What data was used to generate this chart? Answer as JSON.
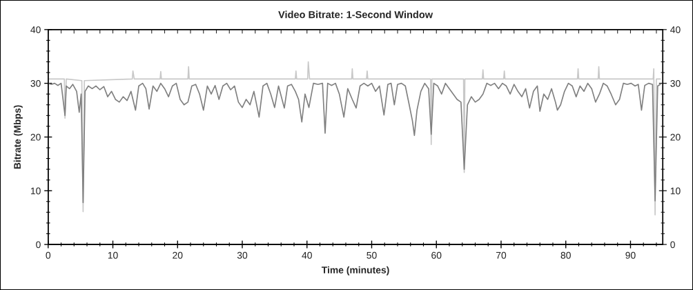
{
  "chart_data": {
    "type": "line",
    "title": "Video Bitrate: 1-Second Window",
    "xlabel": "Time (minutes)",
    "ylabel": "Bitrate (Mbps)",
    "xlim": [
      0,
      95
    ],
    "xticks": [
      0,
      {
        "value": 2,
        "label": null
      },
      {
        "value": 4,
        "label": null
      },
      {
        "value": 6,
        "label": null
      },
      {
        "value": 8,
        "label": null
      },
      10,
      {
        "value": 12,
        "label": null
      },
      {
        "value": 14,
        "label": null
      },
      {
        "value": 16,
        "label": null
      },
      {
        "value": 18,
        "label": null
      },
      20,
      {
        "value": 22,
        "label": null
      },
      {
        "value": 24,
        "label": null
      },
      {
        "value": 26,
        "label": null
      },
      {
        "value": 28,
        "label": null
      },
      30,
      {
        "value": 32,
        "label": null
      },
      {
        "value": 34,
        "label": null
      },
      {
        "value": 36,
        "label": null
      },
      {
        "value": 38,
        "label": null
      },
      40,
      {
        "value": 42,
        "label": null
      },
      {
        "value": 44,
        "label": null
      },
      {
        "value": 46,
        "label": null
      },
      {
        "value": 48,
        "label": null
      },
      50,
      {
        "value": 52,
        "label": null
      },
      {
        "value": 54,
        "label": null
      },
      {
        "value": 56,
        "label": null
      },
      {
        "value": 58,
        "label": null
      },
      60,
      {
        "value": 62,
        "label": null
      },
      {
        "value": 64,
        "label": null
      },
      {
        "value": 66,
        "label": null
      },
      {
        "value": 68,
        "label": null
      },
      70,
      {
        "value": 72,
        "label": null
      },
      {
        "value": 74,
        "label": null
      },
      {
        "value": 76,
        "label": null
      },
      {
        "value": 78,
        "label": null
      },
      80,
      {
        "value": 82,
        "label": null
      },
      {
        "value": 84,
        "label": null
      },
      {
        "value": 86,
        "label": null
      },
      {
        "value": 88,
        "label": null
      },
      90,
      {
        "value": 92,
        "label": null
      },
      {
        "value": 94,
        "label": null
      }
    ],
    "ylim": [
      0,
      40
    ],
    "yticks": [
      0,
      {
        "value": 2,
        "label": null
      },
      {
        "value": 4,
        "label": null
      },
      {
        "value": 6,
        "label": null
      },
      {
        "value": 8,
        "label": null
      },
      10,
      {
        "value": 12,
        "label": null
      },
      {
        "value": 14,
        "label": null
      },
      {
        "value": 16,
        "label": null
      },
      {
        "value": 18,
        "label": null
      },
      20,
      {
        "value": 22,
        "label": null
      },
      {
        "value": 24,
        "label": null
      },
      {
        "value": 26,
        "label": null
      },
      {
        "value": 28,
        "label": null
      },
      30,
      {
        "value": 32,
        "label": null
      },
      {
        "value": 34,
        "label": null
      },
      {
        "value": 36,
        "label": null
      },
      {
        "value": 38,
        "label": null
      },
      40
    ],
    "y2lim": [
      0,
      40
    ],
    "y2ticks": [
      0,
      {
        "value": 2,
        "label": null
      },
      {
        "value": 4,
        "label": null
      },
      {
        "value": 6,
        "label": null
      },
      {
        "value": 8,
        "label": null
      },
      10,
      {
        "value": 12,
        "label": null
      },
      {
        "value": 14,
        "label": null
      },
      {
        "value": 16,
        "label": null
      },
      {
        "value": 18,
        "label": null
      },
      20,
      {
        "value": 22,
        "label": null
      },
      {
        "value": 24,
        "label": null
      },
      {
        "value": 26,
        "label": null
      },
      {
        "value": 28,
        "label": null
      },
      30,
      {
        "value": 32,
        "label": null
      },
      {
        "value": 34,
        "label": null
      },
      {
        "value": 36,
        "label": null
      },
      {
        "value": 38,
        "label": null
      },
      40
    ],
    "series": [
      {
        "color": "#c8c8c8",
        "x": [
          0,
          2.5,
          2.6,
          2.8,
          5.2,
          5.4,
          5.6,
          13,
          13.1,
          13.3,
          17.3,
          17.4,
          17.5,
          21.6,
          21.7,
          21.8,
          38.2,
          38.3,
          38.4,
          40.1,
          40.2,
          40.4,
          46.9,
          47,
          47.1,
          49.2,
          49.3,
          49.4,
          59.1,
          59.2,
          59.3,
          64.2,
          64.3,
          64.4,
          67.1,
          67.2,
          67.3,
          70.4,
          70.5,
          70.6,
          81.8,
          81.9,
          82,
          85,
          85.1,
          85.2,
          93.5,
          93.6,
          93.8,
          94,
          94.6
        ],
        "values": [
          30.8,
          30.8,
          23.5,
          30.8,
          30.5,
          6.1,
          30.5,
          30.8,
          32.3,
          30.8,
          30.8,
          32.2,
          30.8,
          30.8,
          33.1,
          30.8,
          30.8,
          32.3,
          30.8,
          30.8,
          34,
          30.8,
          30.8,
          32.7,
          30.8,
          30.8,
          32.3,
          30.8,
          30.8,
          18.6,
          30.8,
          30.8,
          13.4,
          30.8,
          30.8,
          32.5,
          30.8,
          30.8,
          32.3,
          30.8,
          30.8,
          32.7,
          30.8,
          30.8,
          33.1,
          30.8,
          30.8,
          32.7,
          5.5,
          30.8,
          30.8
        ]
      },
      {
        "color": "#808080",
        "x": [
          0,
          0.5,
          1,
          1.5,
          2,
          2.6,
          2.8,
          3.3,
          3.8,
          4.4,
          4.8,
          5.1,
          5.4,
          5.7,
          6.2,
          6.8,
          7.4,
          8,
          8.6,
          9.2,
          9.8,
          10.4,
          11,
          11.6,
          12.2,
          12.8,
          13.5,
          14,
          14.6,
          15.1,
          15.6,
          16.2,
          16.8,
          17.4,
          18,
          18.6,
          19.2,
          19.8,
          20.4,
          21,
          21.6,
          22.2,
          22.8,
          23.4,
          24,
          24.6,
          25.2,
          25.8,
          26.4,
          27,
          27.6,
          28.2,
          28.8,
          29.4,
          30,
          30.6,
          31.2,
          31.8,
          32.6,
          33.2,
          33.8,
          34.4,
          35,
          35.6,
          36.5,
          37,
          37.6,
          38.2,
          38.7,
          39.2,
          39.7,
          40.3,
          41,
          41.7,
          42.4,
          42.8,
          43.2,
          43.8,
          44.4,
          45,
          45.7,
          46.3,
          47,
          47.6,
          48.2,
          48.8,
          49.4,
          50,
          50.6,
          51.2,
          51.9,
          52.5,
          53,
          53.5,
          54,
          54.6,
          55.2,
          55.8,
          56.3,
          56.6,
          57,
          57.6,
          58.2,
          58.8,
          59.2,
          59.6,
          60.2,
          60.8,
          61.4,
          62,
          62.6,
          63.2,
          63.8,
          64.3,
          64.8,
          65.4,
          66,
          66.6,
          67.2,
          67.8,
          68.4,
          69,
          69.6,
          70.2,
          70.8,
          71.4,
          72,
          72.6,
          73.2,
          73.8,
          74.4,
          75,
          75.6,
          76,
          76.6,
          77.2,
          77.8,
          78.4,
          78.7,
          79.2,
          79.8,
          80.4,
          81,
          81.6,
          82.2,
          82.8,
          83.4,
          84,
          84.6,
          85.2,
          85.8,
          86.4,
          87,
          87.7,
          88.3,
          88.9,
          89.5,
          90.1,
          90.7,
          91.2,
          91.7,
          92.2,
          92.8,
          93.4,
          93.8,
          94.2,
          94.6
        ],
        "values": [
          30,
          29.8,
          30,
          29.6,
          30,
          24,
          29.5,
          29,
          29.8,
          28.5,
          24.6,
          28,
          7.8,
          28.5,
          29.5,
          29,
          29.5,
          28.8,
          29.4,
          27.5,
          28.5,
          27,
          26.5,
          27.5,
          26.8,
          28.5,
          25,
          29.5,
          30,
          29,
          25.2,
          29.5,
          28.5,
          30,
          29,
          27.5,
          29.5,
          30,
          27,
          26,
          26.5,
          29.5,
          29.8,
          28,
          25,
          29.5,
          28,
          29.6,
          27,
          29.5,
          30,
          28.8,
          29.5,
          26.5,
          25.5,
          27,
          26,
          28.5,
          23.7,
          29.5,
          30,
          28,
          25.5,
          29.5,
          25.4,
          29.5,
          29.8,
          28.5,
          27,
          22.8,
          28,
          25.5,
          30,
          29.8,
          30,
          20.7,
          30,
          29.6,
          30,
          28,
          23.7,
          29,
          27,
          25.4,
          29.5,
          30,
          29.5,
          30,
          28.5,
          29.5,
          24.1,
          29.8,
          30,
          26,
          29.8,
          30,
          29.5,
          26,
          23,
          20.3,
          25,
          28.5,
          30,
          29,
          20.5,
          30,
          29.5,
          28,
          30,
          29,
          28,
          27,
          26.5,
          14,
          26,
          27.5,
          26.5,
          27,
          28,
          30,
          29.6,
          30,
          29,
          30,
          29.5,
          28,
          29.8,
          28.5,
          27.5,
          29,
          25.4,
          28.5,
          29.5,
          24.8,
          28,
          27,
          29,
          26.5,
          25,
          26,
          28.5,
          30,
          29.5,
          27.5,
          29.5,
          28.5,
          30,
          29,
          26.5,
          28,
          30,
          29.5,
          28,
          26,
          27,
          30,
          29.8,
          30,
          29.5,
          29.8,
          25,
          29.6,
          30,
          29.8,
          8.1,
          29.5,
          29.8
        ]
      }
    ]
  }
}
